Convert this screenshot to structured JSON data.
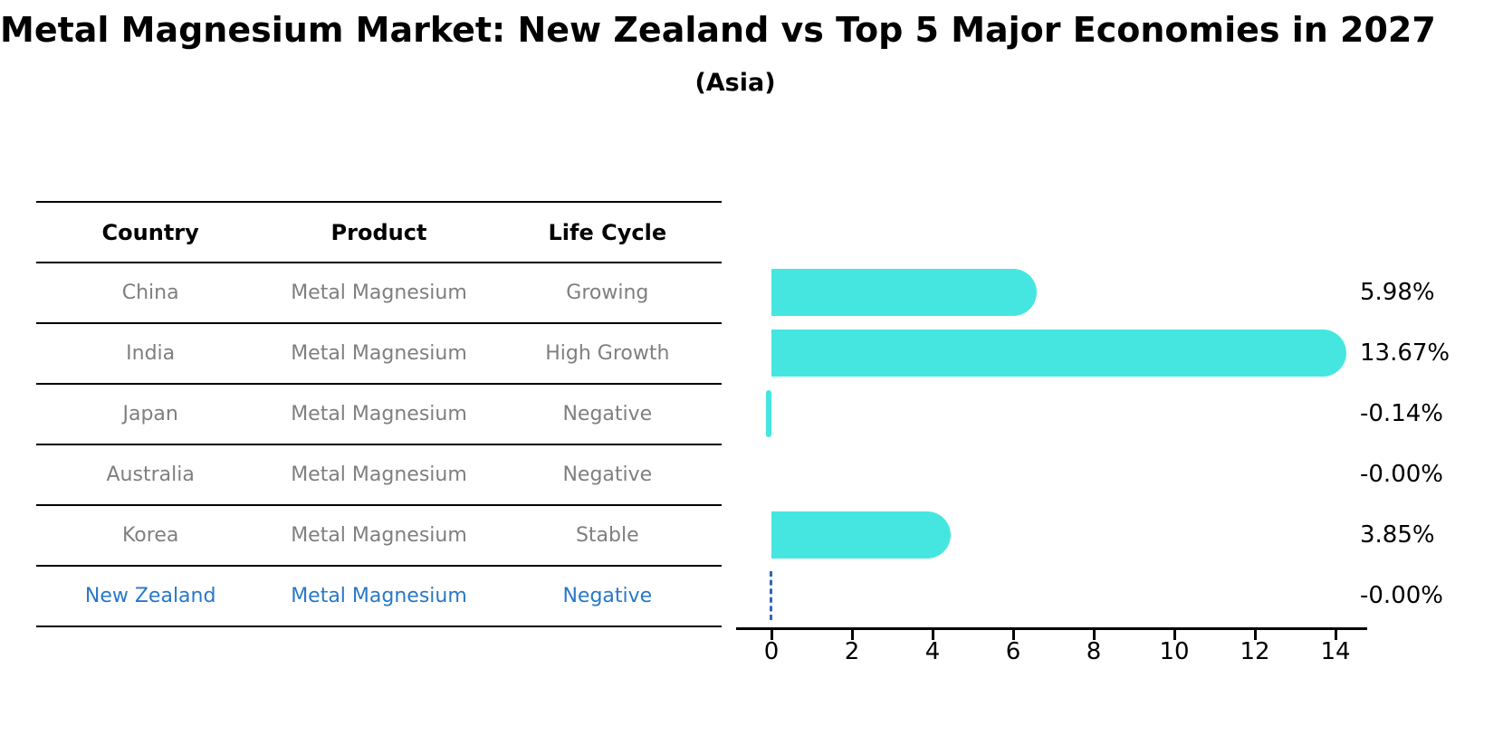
{
  "title": "Metal Magnesium Market: New Zealand vs Top 5 Major Economies in 2027",
  "subtitle": "(Asia)",
  "table": {
    "headers": [
      "Country",
      "Product",
      "Life Cycle"
    ],
    "rows": [
      {
        "country": "China",
        "product": "Metal Magnesium",
        "life_cycle": "Growing",
        "highlight": false
      },
      {
        "country": "India",
        "product": "Metal Magnesium",
        "life_cycle": "High Growth",
        "highlight": false
      },
      {
        "country": "Japan",
        "product": "Metal Magnesium",
        "life_cycle": "Negative",
        "highlight": false
      },
      {
        "country": "Australia",
        "product": "Metal Magnesium",
        "life_cycle": "Negative",
        "highlight": false
      },
      {
        "country": "Korea",
        "product": "Metal Magnesium",
        "life_cycle": "Stable",
        "highlight": false
      },
      {
        "country": "New Zealand",
        "product": "Metal Magnesium",
        "life_cycle": "Negative",
        "highlight": true
      }
    ]
  },
  "chart_data": {
    "type": "bar",
    "orientation": "horizontal",
    "title": "Metal Magnesium Market: New Zealand vs Top 5 Major Economies in 2027",
    "subtitle": "(Asia)",
    "categories": [
      "China",
      "India",
      "Japan",
      "Australia",
      "Korea",
      "New Zealand"
    ],
    "values": [
      5.98,
      13.67,
      -0.14,
      -0.0,
      3.85,
      -0.0
    ],
    "value_labels": [
      "5.98%",
      "13.67%",
      "-0.14%",
      "-0.00%",
      "3.85%",
      "-0.00%"
    ],
    "xlabel": "",
    "ylabel": "",
    "xticks": [
      0,
      2,
      4,
      6,
      8,
      10,
      12,
      14
    ],
    "xlim": [
      -0.9,
      14.8
    ],
    "grid": false,
    "legend": false,
    "bar_color": "#46E6E0",
    "highlight": {
      "index": 5,
      "style": "dashed-zero-line",
      "color": "#3465B4"
    }
  },
  "colors": {
    "bar": "#46E6E0",
    "highlight_text": "#2878C8",
    "dashed_line": "#3465B4",
    "table_text": "#7F7F7F",
    "text": "#000000",
    "line": "#000000",
    "background": "#FFFFFF"
  }
}
